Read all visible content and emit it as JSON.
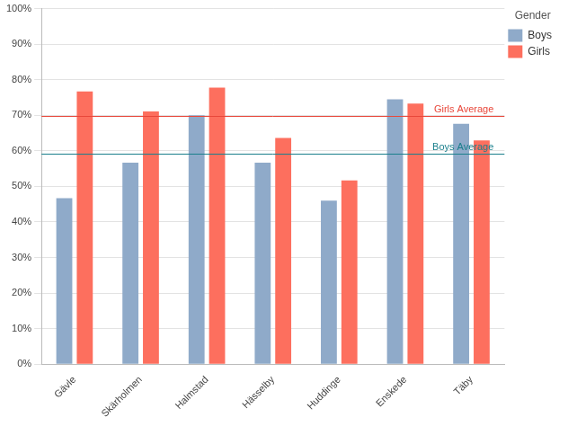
{
  "chart_data": {
    "type": "bar",
    "categories": [
      "Gävle",
      "Skärholmen",
      "Halmstad",
      "Hässelby",
      "Huddinge",
      "Enskede",
      "Täby"
    ],
    "series": [
      {
        "name": "Boys",
        "color": "#8faac9",
        "values": [
          46.7,
          56.7,
          70.0,
          56.7,
          46.0,
          74.5,
          67.6
        ]
      },
      {
        "name": "Girls",
        "color": "#fd6f5e",
        "values": [
          76.7,
          71.1,
          77.8,
          63.6,
          51.7,
          73.3,
          62.9
        ]
      }
    ],
    "legend_title": "Gender",
    "legend": "right",
    "annotations": [
      {
        "label": "Girls Average",
        "value": 69.7,
        "color": "#e8473a"
      },
      {
        "label": "Boys Average",
        "value": 59.3,
        "color": "#1a7f8c"
      }
    ],
    "ylim": [
      0,
      100
    ],
    "yticks": [
      {
        "value": 0,
        "label": "0%"
      },
      {
        "value": 10,
        "label": "10%"
      },
      {
        "value": 20,
        "label": "20%"
      },
      {
        "value": 30,
        "label": "30%"
      },
      {
        "value": 40,
        "label": "40%"
      },
      {
        "value": 50,
        "label": "50%"
      },
      {
        "value": 60,
        "label": "60%"
      },
      {
        "value": 70,
        "label": "70%"
      },
      {
        "value": 80,
        "label": "80%"
      },
      {
        "value": 90,
        "label": "90%"
      },
      {
        "value": 100,
        "label": "100%"
      }
    ],
    "grid": true
  }
}
